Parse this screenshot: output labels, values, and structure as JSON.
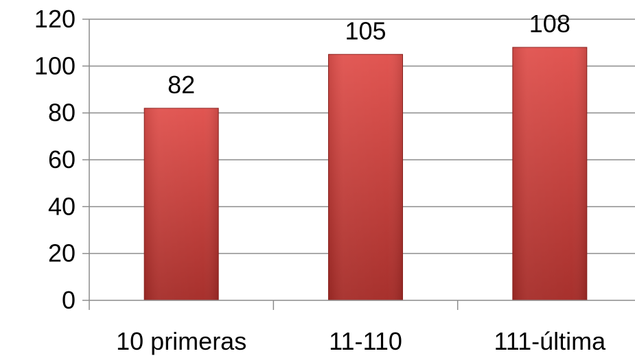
{
  "chart_data": {
    "type": "bar",
    "categories": [
      "10 primeras",
      "11-110",
      "111-última"
    ],
    "values": [
      82,
      105,
      108
    ],
    "data_labels": [
      "82",
      "105",
      "108"
    ],
    "title": "",
    "xlabel": "",
    "ylabel": "",
    "ylim": [
      0,
      120
    ],
    "yticks": [
      0,
      20,
      40,
      60,
      80,
      100,
      120
    ],
    "grid": true,
    "legend": "none",
    "colors": {
      "bar_light": "#e0504c",
      "bar_dark": "#a42a26",
      "bar_edge": "#8f2320",
      "grid": "#8c8c8c",
      "text": "#000000"
    }
  }
}
